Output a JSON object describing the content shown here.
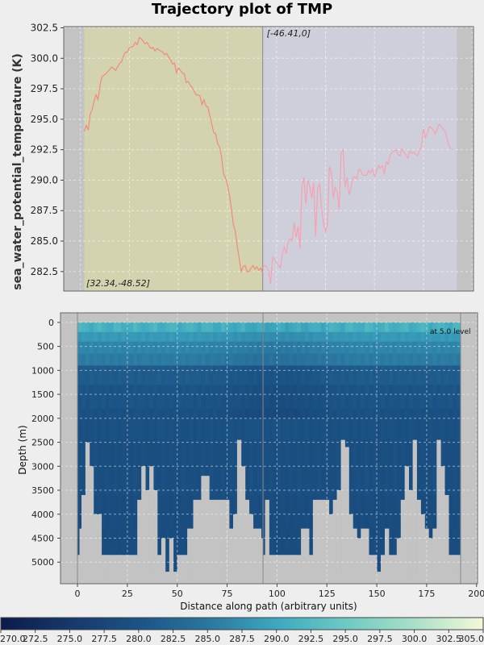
{
  "title": "Trajectory plot of TMP",
  "chart_data": [
    {
      "type": "line",
      "ylabel": "sea_water_potential_temperature (K)",
      "xlabel": "",
      "ylim": [
        280.9,
        302.6
      ],
      "xlim": [
        -8.5,
        200.5
      ],
      "yticks": [
        "282.5",
        "285.0",
        "287.5",
        "290.0",
        "292.5",
        "295.0",
        "297.5",
        "300.0",
        "302.5"
      ],
      "ytick_values": [
        282.5,
        285.0,
        287.5,
        290.0,
        292.5,
        295.0,
        297.5,
        300.0,
        302.5
      ],
      "grid": true,
      "regions": [
        {
          "x0": 2,
          "x1": 93,
          "color": "#d4d3b0"
        },
        {
          "x0": 93,
          "x1": 192,
          "color": "#cfcfdc"
        }
      ],
      "annotations": [
        {
          "text": "[32.34,-48.52]",
          "x": 3,
          "y": 281.3
        },
        {
          "text": "[-46.41,0]",
          "x": 95,
          "y": 301.8
        }
      ],
      "series": [
        {
          "color": "#f08a7a",
          "x": [
            2,
            3,
            4,
            5,
            6,
            7,
            8,
            9,
            10,
            11,
            12,
            14,
            16,
            18,
            20,
            21,
            22,
            23,
            24,
            25,
            26,
            27,
            28,
            29,
            30,
            31,
            32,
            33,
            34,
            35,
            36,
            37,
            38,
            39,
            40,
            41,
            42,
            43,
            44,
            45,
            46,
            47,
            48,
            49,
            50,
            51,
            52,
            53,
            54,
            55,
            56,
            57,
            58,
            59,
            60,
            61,
            62,
            63,
            64,
            65,
            66,
            67,
            68,
            69,
            70,
            71,
            72,
            73,
            74,
            75,
            76,
            77,
            78,
            79,
            80,
            81,
            82,
            83,
            84,
            85,
            86,
            87,
            88,
            89,
            90,
            91,
            92,
            93
          ],
          "y": [
            294.0,
            294.5,
            294.1,
            295.4,
            295.8,
            296.5,
            297.0,
            296.6,
            297.8,
            298.5,
            298.6,
            298.9,
            299.3,
            299.0,
            299.6,
            299.7,
            300.2,
            300.5,
            300.5,
            300.9,
            300.9,
            301.0,
            301.3,
            301.1,
            301.7,
            301.6,
            301.4,
            301.2,
            301.3,
            301.0,
            300.8,
            300.9,
            300.6,
            300.8,
            300.7,
            300.6,
            300.5,
            300.3,
            300.4,
            300.1,
            299.9,
            299.5,
            299.6,
            298.8,
            299.2,
            299.0,
            298.8,
            298.7,
            298.0,
            298.1,
            297.8,
            297.6,
            297.3,
            297.0,
            297.0,
            296.9,
            296.2,
            296.6,
            296.1,
            296.0,
            295.3,
            294.6,
            293.9,
            293.8,
            293.0,
            292.7,
            291.9,
            290.5,
            290.2,
            289.6,
            288.8,
            287.7,
            286.4,
            285.8,
            284.6,
            283.6,
            282.5,
            282.9,
            283.0,
            282.5,
            282.5,
            282.8,
            283.0,
            282.7,
            282.9,
            282.6,
            282.8,
            282.4
          ]
        },
        {
          "color": "#f5a2b0",
          "x": [
            93,
            94,
            95,
            96,
            97,
            98,
            99,
            100,
            101,
            102,
            103,
            104,
            105,
            106,
            107,
            108,
            109,
            110,
            111,
            112,
            113,
            114,
            115,
            116,
            117,
            118,
            119,
            120,
            121,
            122,
            123,
            124,
            125,
            126,
            127,
            128,
            129,
            130,
            131,
            132,
            133,
            134,
            135,
            136,
            137,
            138,
            139,
            140,
            141,
            142,
            143,
            144,
            145,
            146,
            147,
            148,
            149,
            150,
            151,
            152,
            153,
            154,
            155,
            156,
            157,
            158,
            159,
            160,
            161,
            162,
            163,
            164,
            165,
            166,
            167,
            168,
            169,
            170,
            171,
            172,
            173,
            174,
            175,
            176,
            177,
            178,
            179,
            180,
            181,
            182,
            183,
            184,
            185,
            186,
            187,
            188,
            189,
            190
          ],
          "y": [
            282.8,
            283.0,
            282.9,
            282.5,
            281.5,
            283.7,
            283.5,
            283.2,
            283.0,
            282.8,
            283.9,
            284.5,
            284.0,
            285.0,
            285.2,
            285.0,
            286.5,
            285.3,
            286.2,
            284.4,
            289.5,
            290.2,
            288.0,
            290.0,
            289.5,
            288.5,
            289.8,
            285.4,
            289.4,
            289.7,
            287.7,
            286.5,
            285.8,
            286.3,
            291.1,
            290.7,
            288.5,
            289.4,
            289.0,
            287.6,
            292.2,
            292.5,
            289.4,
            290.2,
            288.8,
            289.3,
            290.2,
            290.3,
            290.1,
            290.9,
            290.8,
            290.4,
            290.4,
            290.4,
            290.8,
            290.6,
            290.9,
            290.3,
            290.7,
            291.2,
            291.0,
            291.2,
            290.5,
            291.5,
            291.3,
            292.1,
            292.3,
            292.4,
            292.5,
            292.1,
            292.0,
            292.6,
            292.3,
            292.1,
            291.8,
            292.4,
            292.2,
            292.3,
            292.1,
            292.0,
            292.5,
            292.8,
            294.2,
            293.5,
            293.9,
            294.4,
            294.3,
            294.1,
            293.8,
            294.2,
            294.6,
            294.4,
            294.2,
            294.0,
            293.4,
            292.8,
            292.6,
            292.5
          ]
        }
      ]
    },
    {
      "type": "heatmap",
      "xlabel": "Distance along path (arbitrary units)",
      "ylabel": "Depth (m)",
      "xlim": [
        -8.5,
        200.5
      ],
      "ylim": [
        5450,
        -200
      ],
      "xticks": [
        "0",
        "25",
        "50",
        "75",
        "100",
        "125",
        "150",
        "175",
        "200"
      ],
      "xtick_values": [
        0,
        25,
        50,
        75,
        100,
        125,
        150,
        175,
        200
      ],
      "yticks": [
        "0",
        "500",
        "1000",
        "1500",
        "2000",
        "2500",
        "3000",
        "3500",
        "4000",
        "4500",
        "5000"
      ],
      "ytick_values": [
        0,
        500,
        1000,
        1500,
        2000,
        2500,
        3000,
        3500,
        4000,
        4500,
        5000
      ],
      "annotation": "at 5.0  level",
      "grid": true,
      "vertical_marker": 93,
      "data_x_range": [
        0,
        192
      ],
      "layer_depths": [
        0,
        200,
        400,
        650,
        900,
        1000,
        1300,
        1500,
        1800,
        2000,
        2450,
        2500,
        3000,
        3600,
        4000,
        4300,
        4500,
        4800,
        5200
      ],
      "bottom_depth_profile": {
        "x": [
          0,
          1,
          2,
          4,
          6,
          8,
          12,
          16,
          20,
          24,
          28,
          30,
          32,
          34,
          36,
          38,
          40,
          42,
          44,
          46,
          48,
          50,
          52,
          55,
          58,
          62,
          66,
          70,
          74,
          76,
          78,
          80,
          82,
          84,
          86,
          88,
          90,
          92,
          93,
          94,
          96,
          100,
          104,
          108,
          112,
          116,
          118,
          120,
          122,
          124,
          126,
          128,
          130,
          132,
          134,
          136,
          138,
          140,
          142,
          144,
          146,
          148,
          150,
          152,
          154,
          156,
          158,
          160,
          162,
          164,
          166,
          168,
          170,
          172,
          174,
          176,
          178,
          180,
          182,
          184,
          186,
          188,
          190,
          192
        ],
        "depth": [
          4850,
          4300,
          3600,
          2500,
          3000,
          4000,
          4850,
          4850,
          4850,
          4850,
          4850,
          3700,
          3000,
          3500,
          3000,
          3500,
          4850,
          4500,
          5200,
          4500,
          5200,
          4850,
          4850,
          4300,
          3700,
          3200,
          3700,
          3700,
          3700,
          4300,
          4000,
          2450,
          3000,
          3700,
          4000,
          4300,
          4300,
          4500,
          4850,
          3700,
          4850,
          4850,
          4850,
          4850,
          4300,
          4850,
          3700,
          3700,
          3700,
          3700,
          4000,
          3700,
          3500,
          2450,
          2600,
          4000,
          4300,
          4500,
          4300,
          4300,
          4850,
          4850,
          5200,
          4850,
          4300,
          4850,
          4850,
          4500,
          3700,
          3000,
          3500,
          2450,
          3700,
          4000,
          4300,
          4500,
          4300,
          2450,
          3000,
          3600,
          4850,
          4850,
          4850,
          4850
        ]
      }
    },
    {
      "type": "colorbar",
      "ticks": [
        "270.0",
        "272.5",
        "275.0",
        "277.5",
        "280.0",
        "282.5",
        "285.0",
        "287.5",
        "290.0",
        "292.5",
        "295.0",
        "297.5",
        "300.0",
        "302.5",
        "305.0"
      ],
      "tick_values": [
        270.0,
        272.5,
        275.0,
        277.5,
        280.0,
        282.5,
        285.0,
        287.5,
        290.0,
        292.5,
        295.0,
        297.5,
        300.0,
        302.5,
        305.0
      ],
      "range": [
        270.0,
        305.0
      ],
      "colormap": [
        "#0b1b4a",
        "#16386b",
        "#1b5386",
        "#2a76a0",
        "#3ca9c0",
        "#6ccac4",
        "#a9e0c8",
        "#f5f8d8"
      ]
    }
  ],
  "colors": {
    "background": "#eeeeee",
    "axes_gray": "#c3c3c3",
    "land": "#c3c3c3",
    "grid": "#ffffff"
  }
}
